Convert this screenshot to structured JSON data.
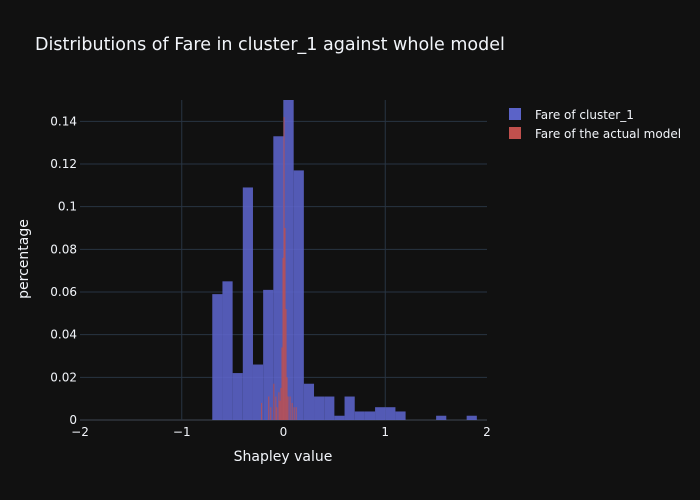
{
  "chart_data": {
    "type": "histogram",
    "title": "Distributions of Fare in cluster_1 against whole model",
    "xlabel": "Shapley value",
    "ylabel": "percentage",
    "xlim": [
      -2,
      2
    ],
    "ylim": [
      0,
      0.15
    ],
    "x_ticks": [
      -2,
      -1,
      0,
      1,
      2
    ],
    "x_tick_labels": [
      "−2",
      "−1",
      "0",
      "1",
      "2"
    ],
    "y_ticks": [
      0,
      0.02,
      0.04,
      0.06,
      0.08,
      0.1,
      0.12,
      0.14
    ],
    "y_tick_labels": [
      "0",
      "0.02",
      "0.04",
      "0.06",
      "0.08",
      "0.1",
      "0.12",
      "0.14"
    ],
    "grid": true,
    "legend_position": "top-right",
    "bin_width": 0.1,
    "series": [
      {
        "name": "Fare of cluster_1",
        "color": "#5b63c8",
        "bins": [
          {
            "x0": -0.7,
            "x1": -0.6,
            "y": 0.059
          },
          {
            "x0": -0.6,
            "x1": -0.5,
            "y": 0.065
          },
          {
            "x0": -0.5,
            "x1": -0.4,
            "y": 0.022
          },
          {
            "x0": -0.4,
            "x1": -0.3,
            "y": 0.109
          },
          {
            "x0": -0.3,
            "x1": -0.2,
            "y": 0.026
          },
          {
            "x0": -0.2,
            "x1": -0.1,
            "y": 0.061
          },
          {
            "x0": -0.1,
            "x1": 0.0,
            "y": 0.133
          },
          {
            "x0": 0.0,
            "x1": 0.1,
            "y": 0.15
          },
          {
            "x0": 0.1,
            "x1": 0.2,
            "y": 0.117
          },
          {
            "x0": 0.2,
            "x1": 0.3,
            "y": 0.017
          },
          {
            "x0": 0.3,
            "x1": 0.4,
            "y": 0.011
          },
          {
            "x0": 0.4,
            "x1": 0.5,
            "y": 0.011
          },
          {
            "x0": 0.5,
            "x1": 0.6,
            "y": 0.002
          },
          {
            "x0": 0.6,
            "x1": 0.7,
            "y": 0.011
          },
          {
            "x0": 0.7,
            "x1": 0.8,
            "y": 0.004
          },
          {
            "x0": 0.8,
            "x1": 0.9,
            "y": 0.004
          },
          {
            "x0": 0.9,
            "x1": 1.0,
            "y": 0.006
          },
          {
            "x0": 1.0,
            "x1": 1.1,
            "y": 0.006
          },
          {
            "x0": 1.1,
            "x1": 1.2,
            "y": 0.004
          },
          {
            "x0": 1.5,
            "x1": 1.6,
            "y": 0.002
          },
          {
            "x0": 1.8,
            "x1": 1.9,
            "y": 0.002
          }
        ]
      },
      {
        "name": "Fare of the actual model",
        "color": "#c0504d",
        "bins": [
          {
            "x0": -0.22,
            "x1": -0.21,
            "y": 0.008
          },
          {
            "x0": -0.15,
            "x1": -0.14,
            "y": 0.011
          },
          {
            "x0": -0.13,
            "x1": -0.12,
            "y": 0.006
          },
          {
            "x0": -0.1,
            "x1": -0.09,
            "y": 0.017
          },
          {
            "x0": -0.08,
            "x1": -0.07,
            "y": 0.011
          },
          {
            "x0": -0.07,
            "x1": -0.06,
            "y": 0.006
          },
          {
            "x0": -0.05,
            "x1": -0.04,
            "y": 0.013
          },
          {
            "x0": -0.04,
            "x1": -0.03,
            "y": 0.009
          },
          {
            "x0": -0.03,
            "x1": -0.02,
            "y": 0.015
          },
          {
            "x0": -0.02,
            "x1": -0.01,
            "y": 0.034
          },
          {
            "x0": -0.01,
            "x1": 0.0,
            "y": 0.076
          },
          {
            "x0": 0.0,
            "x1": 0.01,
            "y": 0.142
          },
          {
            "x0": 0.01,
            "x1": 0.02,
            "y": 0.09
          },
          {
            "x0": 0.02,
            "x1": 0.03,
            "y": 0.052
          },
          {
            "x0": 0.03,
            "x1": 0.04,
            "y": 0.02
          },
          {
            "x0": 0.04,
            "x1": 0.05,
            "y": 0.011
          },
          {
            "x0": 0.06,
            "x1": 0.07,
            "y": 0.011
          },
          {
            "x0": 0.08,
            "x1": 0.09,
            "y": 0.008
          },
          {
            "x0": 0.1,
            "x1": 0.11,
            "y": 0.006
          },
          {
            "x0": 0.12,
            "x1": 0.13,
            "y": 0.006
          }
        ]
      }
    ]
  }
}
